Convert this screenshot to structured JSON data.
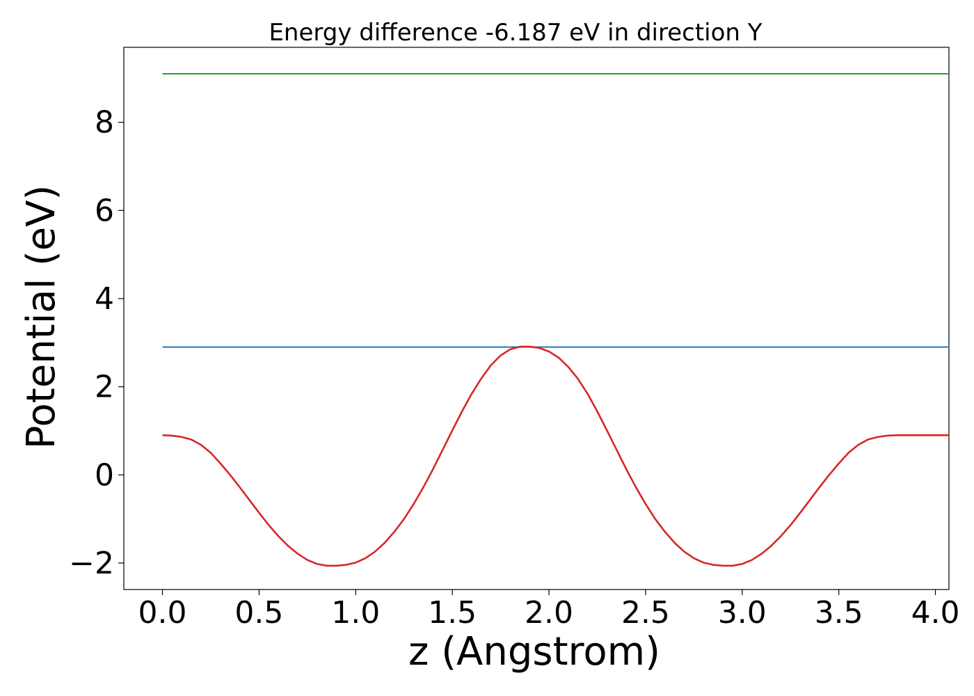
{
  "chart_data": {
    "type": "line",
    "title": "Energy difference -6.187 eV in direction Y",
    "xlabel": "z (Angstrom)",
    "ylabel": "Potential (eV)",
    "xlim": [
      -0.2,
      4.07
    ],
    "ylim": [
      -2.6,
      9.7
    ],
    "xticks": [
      0.0,
      0.5,
      1.0,
      1.5,
      2.0,
      2.5,
      3.0,
      3.5,
      4.0
    ],
    "xtick_labels": [
      "0.0",
      "0.5",
      "1.0",
      "1.5",
      "2.0",
      "2.5",
      "3.0",
      "3.5",
      "4.0"
    ],
    "yticks": [
      -2,
      0,
      2,
      4,
      6,
      8
    ],
    "ytick_labels": [
      "−2",
      "0",
      "2",
      "4",
      "6",
      "8"
    ],
    "grid": false,
    "series": [
      {
        "color": "#2ca02c",
        "x": [
          0.0,
          4.07
        ],
        "y": [
          9.1,
          9.1
        ]
      },
      {
        "color": "#1f77b4",
        "x": [
          0.0,
          4.07
        ],
        "y": [
          2.9,
          2.9
        ]
      },
      {
        "color": "#d62728",
        "x": [
          0.0,
          0.05,
          0.1,
          0.15,
          0.2,
          0.25,
          0.3,
          0.35,
          0.4,
          0.45,
          0.5,
          0.55,
          0.6,
          0.65,
          0.7,
          0.75,
          0.8,
          0.85,
          0.9,
          0.95,
          1.0,
          1.05,
          1.1,
          1.15,
          1.2,
          1.25,
          1.3,
          1.35,
          1.4,
          1.45,
          1.5,
          1.55,
          1.6,
          1.65,
          1.7,
          1.75,
          1.8,
          1.85,
          1.9,
          1.95,
          2.0,
          2.05,
          2.1,
          2.15,
          2.2,
          2.25,
          2.3,
          2.35,
          2.4,
          2.45,
          2.5,
          2.55,
          2.6,
          2.65,
          2.7,
          2.75,
          2.8,
          2.85,
          2.9,
          2.95,
          3.0,
          3.05,
          3.1,
          3.15,
          3.2,
          3.25,
          3.3,
          3.35,
          3.4,
          3.45,
          3.5,
          3.55,
          3.6,
          3.65,
          3.7,
          3.75,
          3.8,
          3.85,
          3.9,
          3.95,
          4.0,
          4.05,
          4.07
        ],
        "y": [
          0.9,
          0.89,
          0.86,
          0.8,
          0.68,
          0.5,
          0.26,
          0.0,
          -0.28,
          -0.57,
          -0.86,
          -1.14,
          -1.39,
          -1.61,
          -1.79,
          -1.93,
          -2.02,
          -2.06,
          -2.06,
          -2.04,
          -1.99,
          -1.89,
          -1.74,
          -1.54,
          -1.29,
          -1.0,
          -0.66,
          -0.28,
          0.13,
          0.57,
          1.01,
          1.44,
          1.84,
          2.19,
          2.49,
          2.71,
          2.85,
          2.91,
          2.91,
          2.88,
          2.8,
          2.66,
          2.45,
          2.18,
          1.84,
          1.44,
          1.01,
          0.57,
          0.13,
          -0.28,
          -0.66,
          -1.0,
          -1.29,
          -1.54,
          -1.74,
          -1.89,
          -1.99,
          -2.04,
          -2.06,
          -2.06,
          -2.02,
          -1.93,
          -1.79,
          -1.61,
          -1.39,
          -1.14,
          -0.86,
          -0.57,
          -0.28,
          0.0,
          0.26,
          0.5,
          0.68,
          0.8,
          0.86,
          0.89,
          0.9,
          0.9,
          0.9,
          0.9,
          0.9,
          0.9,
          0.9
        ]
      }
    ]
  }
}
